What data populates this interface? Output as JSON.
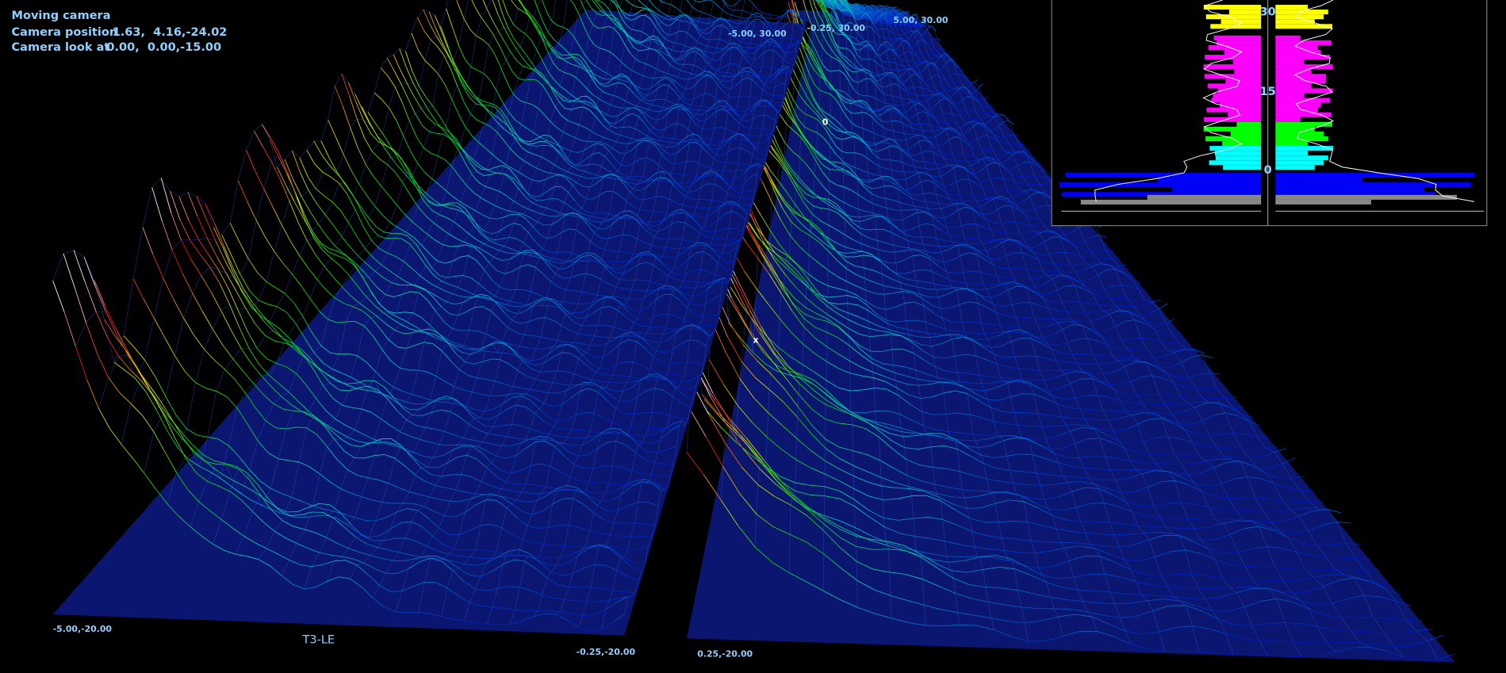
{
  "header": {
    "status": "Moving camera",
    "camera_position": {
      "label": "Camera position",
      "value": "1.63,  4.16,-24.02"
    },
    "camera_look_at": {
      "label": "Camera look at",
      "value": "0.00,  0.00,-15.00"
    }
  },
  "view_title": "T3-LE",
  "corner_labels": {
    "left_front_left": "-5.00,-20.00",
    "left_front_right": "-0.25,-20.00",
    "right_front_left": "0.25,-20.00",
    "left_back_left": "-5.00, 30.00",
    "right_back_left": "-0.25, 30.00",
    "right_back_right": "5.00, 30.00"
  },
  "markers": [
    "0",
    "x"
  ],
  "histogram": {
    "ticks": [
      "30",
      "15",
      "0"
    ]
  }
}
